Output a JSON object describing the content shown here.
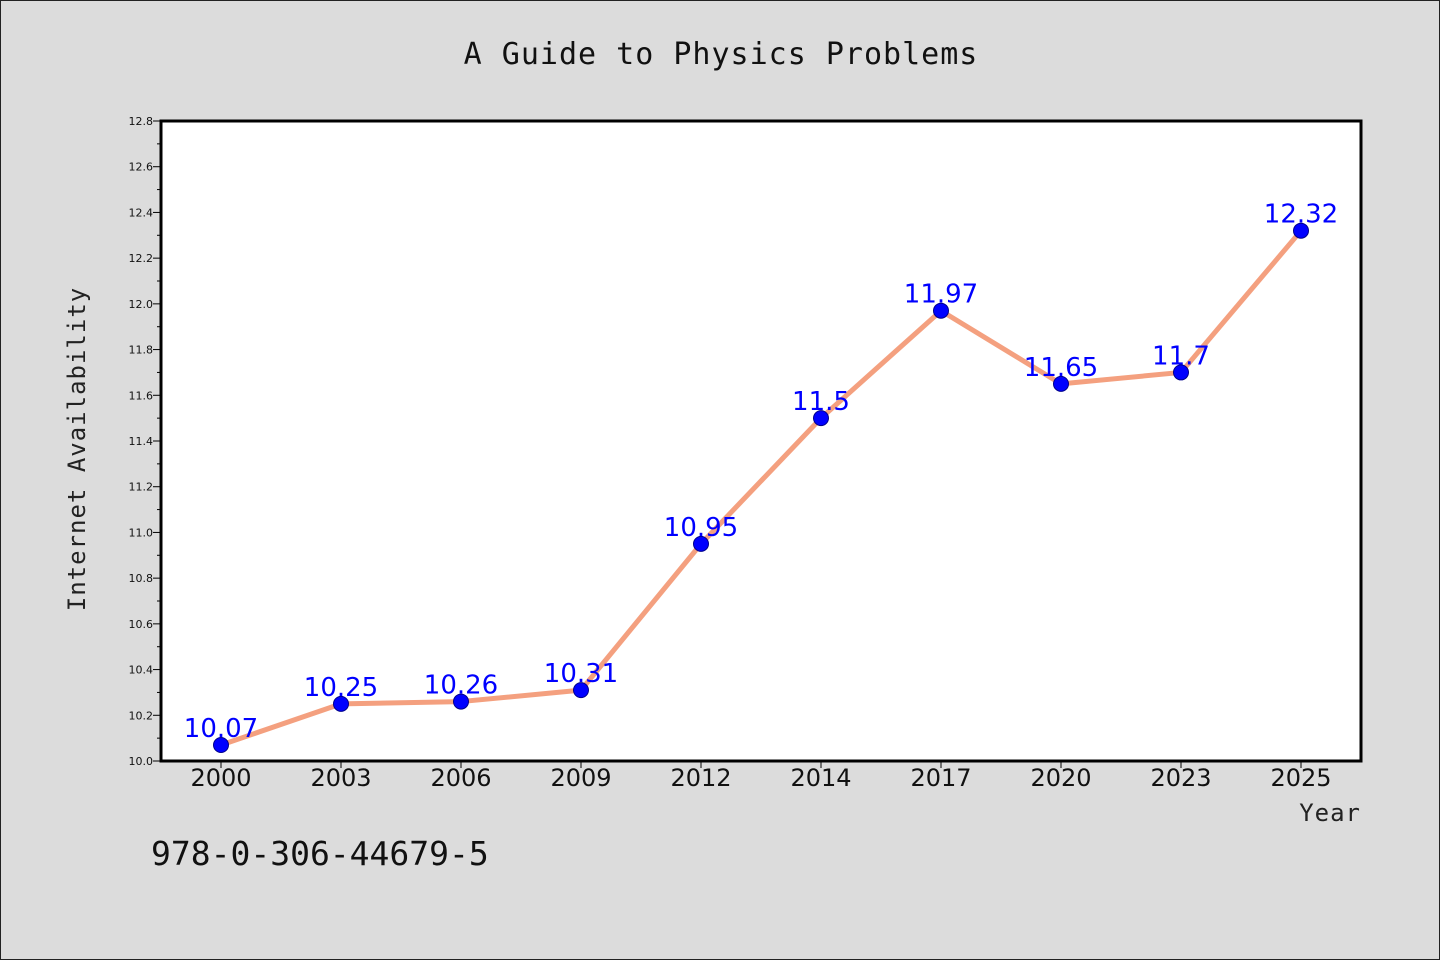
{
  "chart_data": {
    "type": "line",
    "title": "A Guide to Physics Problems",
    "xlabel": "Year",
    "ylabel": "Internet Availability",
    "categories": [
      "2000",
      "2003",
      "2006",
      "2009",
      "2012",
      "2014",
      "2017",
      "2020",
      "2023",
      "2025"
    ],
    "series": [
      {
        "values": [
          10.07,
          10.25,
          10.26,
          10.31,
          10.95,
          11.5,
          11.97,
          11.65,
          11.7,
          12.32
        ],
        "data_labels": [
          "10.07",
          "10.25",
          "10.26",
          "10.31",
          "10.95",
          "11.5",
          "11.97",
          "11.65",
          "11.7",
          "12.32"
        ]
      }
    ],
    "ylim": [
      10.0,
      12.8
    ],
    "yticks": [
      "10.0",
      "10.2",
      "10.4",
      "10.6",
      "10.8",
      "11.0",
      "11.2",
      "11.4",
      "11.6",
      "11.8",
      "12.0",
      "12.2",
      "12.4",
      "12.6",
      "12.8"
    ],
    "grid": false,
    "legend": "none",
    "colors": {
      "line": "#f4a07f",
      "marker": "#0000ff",
      "data_label": "#0000ff",
      "background": "#dcdcdc",
      "plot_area": "#ffffff"
    }
  },
  "footnote": "978-0-306-44679-5"
}
